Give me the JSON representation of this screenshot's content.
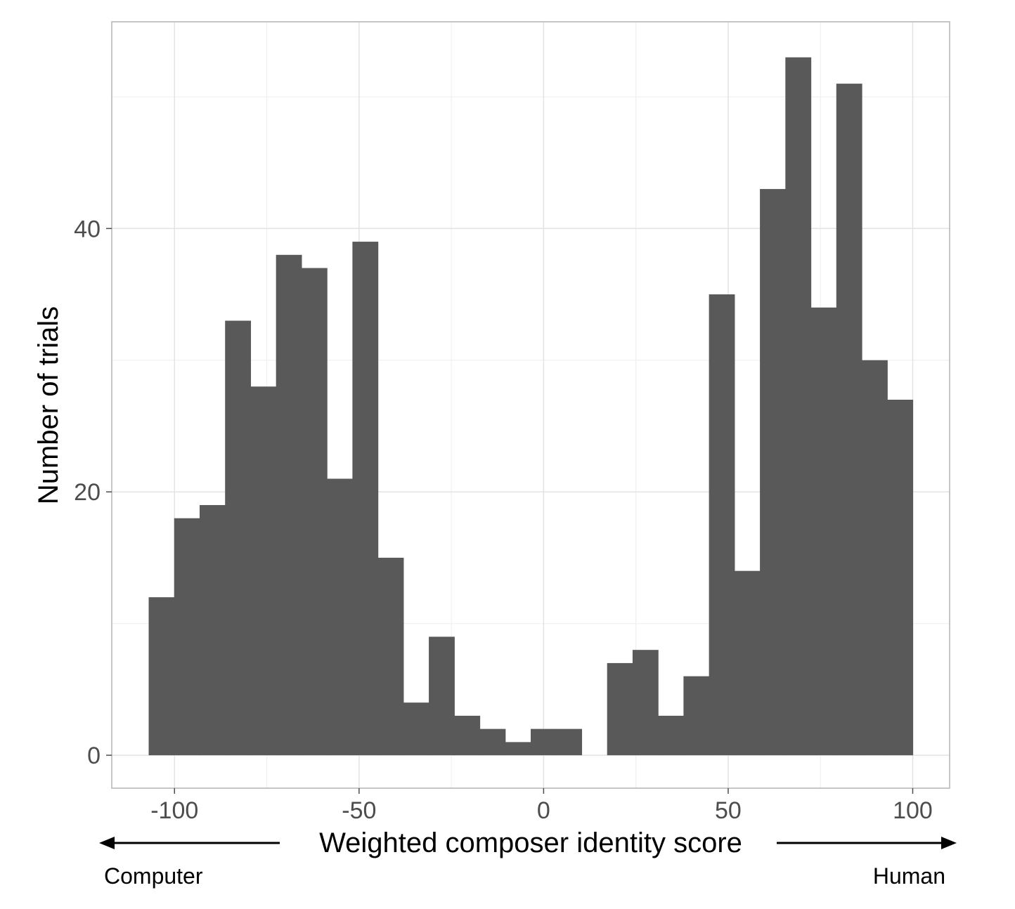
{
  "chart_data": {
    "type": "bar",
    "subtype": "histogram",
    "xlabel": "Weighted composer identity score",
    "ylabel": "Number of trials",
    "x_ticks": [
      -100,
      -50,
      0,
      50,
      100
    ],
    "y_ticks": [
      0,
      20,
      40
    ],
    "xlim": [
      -117,
      110
    ],
    "ylim": [
      -2.5,
      55.7
    ],
    "bin_width": 6.9,
    "bins": [
      {
        "left": -107.0,
        "right": -100.1,
        "count": 12
      },
      {
        "left": -100.1,
        "right": -93.2,
        "count": 18
      },
      {
        "left": -93.2,
        "right": -86.3,
        "count": 19
      },
      {
        "left": -86.3,
        "right": -79.4,
        "count": 33
      },
      {
        "left": -79.4,
        "right": -72.5,
        "count": 28
      },
      {
        "left": -72.5,
        "right": -65.6,
        "count": 38
      },
      {
        "left": -65.6,
        "right": -58.7,
        "count": 37
      },
      {
        "left": -58.7,
        "right": -51.8,
        "count": 21
      },
      {
        "left": -51.8,
        "right": -44.9,
        "count": 39
      },
      {
        "left": -44.9,
        "right": -38.0,
        "count": 15
      },
      {
        "left": -38.0,
        "right": -31.1,
        "count": 4
      },
      {
        "left": -31.1,
        "right": -24.2,
        "count": 9
      },
      {
        "left": -24.2,
        "right": -17.3,
        "count": 3
      },
      {
        "left": -17.3,
        "right": -10.4,
        "count": 2
      },
      {
        "left": -10.4,
        "right": -3.5,
        "count": 1
      },
      {
        "left": -3.5,
        "right": 3.4,
        "count": 2
      },
      {
        "left": 3.4,
        "right": 10.3,
        "count": 2
      },
      {
        "left": 10.3,
        "right": 17.2,
        "count": 0
      },
      {
        "left": 17.2,
        "right": 24.1,
        "count": 7
      },
      {
        "left": 24.1,
        "right": 31.0,
        "count": 8
      },
      {
        "left": 31.0,
        "right": 37.9,
        "count": 3
      },
      {
        "left": 37.9,
        "right": 44.8,
        "count": 6
      },
      {
        "left": 44.8,
        "right": 51.7,
        "count": 35
      },
      {
        "left": 51.7,
        "right": 58.6,
        "count": 14
      },
      {
        "left": 58.6,
        "right": 65.5,
        "count": 43
      },
      {
        "left": 65.5,
        "right": 72.4,
        "count": 53
      },
      {
        "left": 72.4,
        "right": 79.3,
        "count": 34
      },
      {
        "left": 79.3,
        "right": 86.2,
        "count": 51
      },
      {
        "left": 86.2,
        "right": 93.1,
        "count": 30
      },
      {
        "left": 93.1,
        "right": 100.0,
        "count": 27
      }
    ],
    "bar_color": "#595959",
    "grid": true,
    "legend": "none",
    "left_end_label": "Computer",
    "right_end_label": "Human"
  }
}
